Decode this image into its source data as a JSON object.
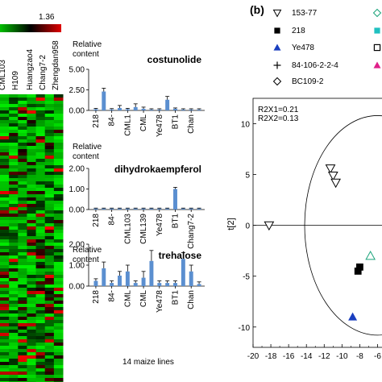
{
  "heatmap": {
    "scale_max_label": "1.36",
    "column_labels": [
      "CML103",
      "H109",
      "Huangzao4",
      "Chang7-2",
      "Zhengdan958"
    ]
  },
  "panel_b_label": "(b)",
  "xlabel": "14 maize  lines",
  "bar_charts": [
    {
      "title": "costunolide",
      "ylabel_line1": "Relative",
      "ylabel_line2": "content",
      "yticks": [
        "0.00",
        "2.50",
        "5.00"
      ],
      "ylim": [
        0,
        5
      ],
      "categories": [
        "218",
        "84-",
        "CML1",
        "CML",
        "Ye478",
        "BT1",
        "Chan"
      ],
      "values": [
        0.15,
        2.3,
        0.12,
        0.3,
        0.15,
        0.4,
        0.2,
        0.1,
        0.1,
        1.3,
        0.2,
        0.1,
        0.1,
        0.1
      ],
      "errors": [
        0.1,
        0.4,
        0.1,
        0.3,
        0.1,
        0.4,
        0.2,
        0.1,
        0.1,
        0.4,
        0.1,
        0.1,
        0.1,
        0.1
      ]
    },
    {
      "title": "dihydrokaempferol",
      "ylabel_line1": "Relative",
      "ylabel_line2": "content",
      "yticks": [
        "0.00",
        "1.00",
        "2.00"
      ],
      "ylim": [
        0,
        2
      ],
      "categories": [
        "218",
        "84-",
        "CML103",
        "CML139",
        "Ye478",
        "BT1",
        "Chang7-2"
      ],
      "values": [
        0.05,
        0.05,
        0.05,
        0.05,
        0.05,
        0.05,
        0.05,
        0.05,
        0.05,
        0.05,
        1.0,
        0.05,
        0.05,
        0.05
      ],
      "errors": [
        0.02,
        0.02,
        0.02,
        0.02,
        0.02,
        0.02,
        0.02,
        0.02,
        0.02,
        0.02,
        0.08,
        0.02,
        0.02,
        0.02
      ]
    },
    {
      "title": "trehalose",
      "ylabel_line1": "Relative",
      "ylabel_line2": "content",
      "yticks": [
        "0.00",
        "1.00",
        "2.00"
      ],
      "ylim": [
        0,
        2
      ],
      "categories": [
        "218",
        "84-",
        "CML",
        "CML",
        "Ye478",
        "BT1",
        "Chan"
      ],
      "values": [
        0.25,
        0.85,
        0.15,
        0.5,
        0.7,
        0.15,
        0.4,
        1.2,
        0.15,
        0.15,
        0.15,
        1.3,
        0.7,
        0.1
      ],
      "errors": [
        0.1,
        0.3,
        0.1,
        0.2,
        0.3,
        0.1,
        0.3,
        0.5,
        0.1,
        0.1,
        0.1,
        0.3,
        0.3,
        0.1
      ]
    }
  ],
  "scatter": {
    "r2x1": "R2X1=0.21",
    "r2x2": "R2X2=0.13",
    "ylabel": "t[2]",
    "xticks": [
      "-20",
      "-18",
      "-16",
      "-14",
      "-12",
      "-10",
      "-8",
      "-6"
    ],
    "yticks": [
      "10",
      "5",
      "0",
      "-5",
      "-10"
    ],
    "xlim": [
      -20,
      -5.5
    ],
    "ylim": [
      -12,
      12.5
    ],
    "legend": [
      {
        "label": "153-77",
        "marker": "tri-down-open",
        "color": "#000000"
      },
      {
        "label": "218",
        "marker": "square",
        "color": "#000000"
      },
      {
        "label": "Ye478",
        "marker": "tri-up",
        "color": "#1a3fbf"
      },
      {
        "label": "84-106-2-2-4",
        "marker": "plus",
        "color": "#000000"
      },
      {
        "label": "BC109-2",
        "marker": "diamond-open",
        "color": "#000000"
      }
    ],
    "legend_extra": [
      {
        "marker": "diamond-open",
        "color": "#1aa37a"
      },
      {
        "marker": "square",
        "color": "#20c0c0"
      },
      {
        "marker": "square-open",
        "color": "#000000"
      },
      {
        "marker": "tri-up",
        "color": "#e0208a"
      }
    ],
    "points": [
      {
        "group": "153-77",
        "x": -18.2,
        "y": 0.0
      },
      {
        "group": "153-77",
        "x": -11.3,
        "y": 5.6
      },
      {
        "group": "153-77",
        "x": -11.0,
        "y": 4.9
      },
      {
        "group": "153-77",
        "x": -10.7,
        "y": 4.2
      },
      {
        "group": "BC109-2-green",
        "x": -6.8,
        "y": -3.0
      },
      {
        "group": "218",
        "x": -8.0,
        "y": -4.1
      },
      {
        "group": "218",
        "x": -8.2,
        "y": -4.5
      },
      {
        "group": "Ye478",
        "x": -8.8,
        "y": -9.0
      }
    ],
    "ellipse": {
      "cx": -6.0,
      "cy": 0.0,
      "rx": 8.2,
      "ry": 10.8
    }
  }
}
